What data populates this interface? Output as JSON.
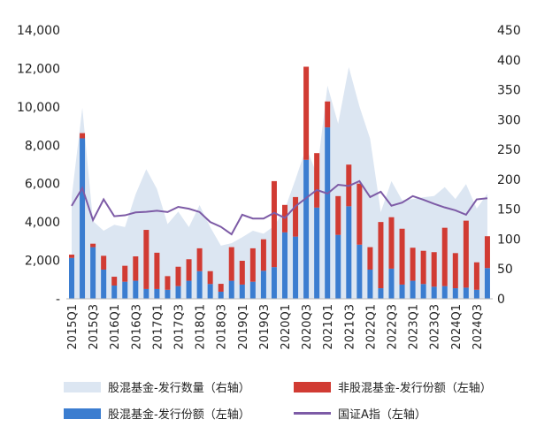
{
  "chart_data": {
    "type": "bar",
    "stacked": true,
    "categories": [
      "2015Q1",
      "2015Q2",
      "2015Q3",
      "2015Q4",
      "2016Q1",
      "2016Q2",
      "2016Q3",
      "2016Q4",
      "2017Q1",
      "2017Q2",
      "2017Q3",
      "2017Q4",
      "2018Q1",
      "2018Q2",
      "2018Q3",
      "2018Q4",
      "2019Q1",
      "2019Q2",
      "2019Q3",
      "2019Q4",
      "2020Q1",
      "2020Q2",
      "2020Q3",
      "2020Q4",
      "2021Q1",
      "2021Q2",
      "2021Q3",
      "2021Q4",
      "2022Q1",
      "2022Q2",
      "2022Q3",
      "2022Q4",
      "2023Q1",
      "2023Q2",
      "2023Q3",
      "2023Q4",
      "2024Q1",
      "2024Q2",
      "2024Q3",
      "2024Q4"
    ],
    "left_axis": {
      "ylim": [
        0,
        14000
      ],
      "ticks": [
        "-",
        "2,000",
        "4,000",
        "6,000",
        "8,000",
        "10,000",
        "12,000",
        "14,000"
      ]
    },
    "right_axis": {
      "ylim": [
        0,
        450
      ],
      "ticks": [
        "0",
        "50",
        "100",
        "150",
        "200",
        "250",
        "300",
        "350",
        "400",
        "450"
      ]
    },
    "series": [
      {
        "name": "股混基金-发行数量（右轴）",
        "type": "area",
        "axis": "right",
        "color": "#dce6f2",
        "values": [
          170,
          320,
          130,
          114,
          124,
          120,
          175,
          217,
          184,
          125,
          146,
          120,
          157,
          120,
          89,
          93,
          103,
          114,
          109,
          122,
          150,
          200,
          253,
          209,
          357,
          293,
          388,
          322,
          268,
          145,
          197,
          165,
          167,
          170,
          172,
          187,
          167,
          192,
          151,
          176
        ]
      },
      {
        "name": "股混基金-发行份额（左轴）",
        "type": "bar",
        "axis": "left",
        "color": "#3b7dd0",
        "values": [
          2130,
          8360,
          2690,
          1520,
          690,
          890,
          940,
          510,
          510,
          470,
          660,
          940,
          1440,
          770,
          370,
          940,
          740,
          890,
          1460,
          1650,
          3460,
          3240,
          7240,
          4750,
          8930,
          3330,
          4820,
          2820,
          1520,
          550,
          1570,
          740,
          940,
          770,
          630,
          660,
          550,
          580,
          470,
          1600
        ]
      },
      {
        "name": "非股混基金-发行份额（左轴）",
        "type": "bar",
        "axis": "left",
        "color": "#d13b33",
        "values": [
          170,
          270,
          180,
          720,
          460,
          830,
          1270,
          3080,
          1890,
          710,
          1010,
          1120,
          1190,
          670,
          410,
          1750,
          1240,
          1740,
          1640,
          4480,
          1430,
          2060,
          4850,
          2840,
          1350,
          2020,
          2170,
          3180,
          1170,
          3450,
          2680,
          2910,
          1720,
          1730,
          1800,
          3040,
          1830,
          3490,
          1430,
          1660
        ]
      },
      {
        "name": "国证A指（左轴）",
        "type": "line",
        "axis": "left",
        "color": "#7d5ba6",
        "values": [
          4840,
          5770,
          4100,
          5180,
          4300,
          4350,
          4500,
          4530,
          4590,
          4520,
          4790,
          4690,
          4520,
          4000,
          3750,
          3360,
          4380,
          4180,
          4180,
          4480,
          4210,
          4820,
          5250,
          5670,
          5480,
          5940,
          5880,
          6130,
          5300,
          5580,
          4850,
          5010,
          5350,
          5160,
          4950,
          4760,
          4610,
          4380,
          5180,
          5240
        ]
      }
    ],
    "legend_placement": "bottom",
    "grid": false
  }
}
